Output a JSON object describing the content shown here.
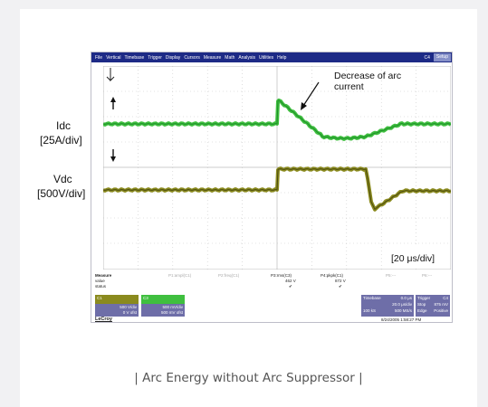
{
  "menu": {
    "items": [
      "File",
      "Vertical",
      "Timebase",
      "Trigger",
      "Display",
      "Cursors",
      "Measure",
      "Math",
      "Analysis",
      "Utilities",
      "Help"
    ],
    "right_label": "C4",
    "setup_label": "Setup"
  },
  "labels": {
    "idc": "Idc",
    "idc_scale": "[25A/div]",
    "vdc": "Vdc",
    "vdc_scale": "[500V/div]",
    "annotation_line1": "Decrease of arc",
    "annotation_line2": "current",
    "time_scale": "[20 μs/div]"
  },
  "measure": {
    "title": "Measure",
    "row_value": "value",
    "row_status": "status",
    "p1": "P1:ampl(C1)",
    "p2": "P2:freq(C1)",
    "p3": "P3:rms(C3)",
    "p3_value": "462 V",
    "p4": "P4:pkpk(C1)",
    "p4_value": "872 V",
    "p5": "P5:---",
    "p6": "P6:---"
  },
  "channels": {
    "c1_label": "C1",
    "c1_scale": "500 V/div",
    "c1_offset": "0 V ofst",
    "c3_label": "C3",
    "c3_scale": "500 mV/div",
    "c3_offset": "500 mV ofst"
  },
  "timebase": {
    "label": "Timebase",
    "value": "0.0 μs",
    "rate": "20.0 μs/div",
    "samples": "100 kS",
    "sample_rate": "500 MS/s",
    "trigger_label": "Trigger",
    "trigger_ch": "C4",
    "trigger_mode": "Stop",
    "trigger_level": "875 mV",
    "trigger_edge": "Edge",
    "trigger_slope": "Positive"
  },
  "datetime": "8/24/2005 1:58:27 PM",
  "brand": "LeCroy",
  "caption": "| Arc Energy without Arc Suppressor |",
  "colors": {
    "current_trace": "#3fbf3f",
    "voltage_trace": "#8a8a1e",
    "menubar": "#1d2a86"
  }
}
